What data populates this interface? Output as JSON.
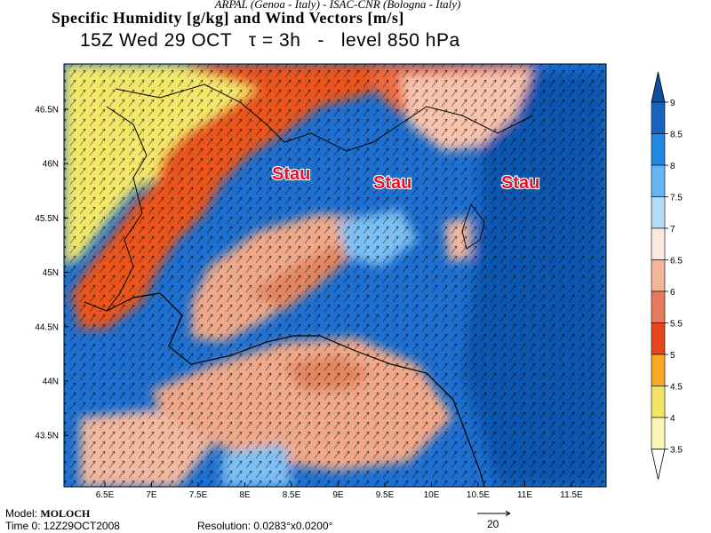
{
  "header": {
    "credits": "ARPAL (Genoa - Italy)   -   ISAC-CNR (Bologna - Italy)",
    "title": "Specific Humidity [g/kg] and Wind Vectors [m/s]",
    "time_line": "15Z Wed 29 OCT   τ = 3h   -   level 850 hPa"
  },
  "map": {
    "lon_ticks": [
      "6.5E",
      "7E",
      "7.5E",
      "8E",
      "8.5E",
      "9E",
      "9.5E",
      "10E",
      "10.5E",
      "11E",
      "11.5E"
    ],
    "lat_ticks": [
      "46.5N",
      "46N",
      "45.5N",
      "45N",
      "44.5N",
      "44N",
      "43.5N"
    ],
    "annotations": [
      "Stau",
      "Stau",
      "Stau"
    ]
  },
  "colorbar": {
    "labels": [
      "9",
      "8.5",
      "8",
      "7.5",
      "7",
      "6.5",
      "6",
      "5.5",
      "5",
      "4.5",
      "4",
      "3.5"
    ],
    "colors": [
      "#0b4ea2",
      "#1565c0",
      "#1e88e5",
      "#64b5f6",
      "#b3dcf6",
      "#fde8e0",
      "#f2b59a",
      "#e57a5c",
      "#e8461a",
      "#f9a825",
      "#f5e463",
      "#fbf6b8"
    ]
  },
  "footer": {
    "model_label": "Model:",
    "model_name": "MOLOCH",
    "time0": "Time 0: 12Z29OCT2008",
    "resolution": "Resolution: 0.0283°x0.0200°",
    "ref_vector": "20"
  }
}
